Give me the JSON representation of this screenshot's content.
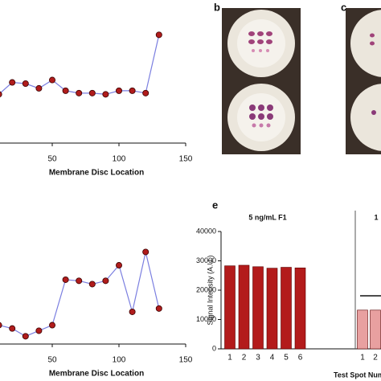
{
  "panels": [
    "b",
    "c"
  ],
  "chart_data": [
    {
      "type": "line",
      "xlabel": "Membrane Disc Location",
      "x": [
        10,
        20,
        30,
        40,
        50,
        60,
        70,
        80,
        90,
        100,
        110,
        120,
        130
      ],
      "values": [
        41,
        51,
        50,
        46,
        53,
        44,
        42,
        42,
        41,
        44,
        44,
        42,
        91
      ],
      "xlim": [
        0,
        150
      ],
      "xticks": [
        50,
        100,
        150
      ],
      "ylim": [
        0,
        100
      ],
      "color": "#7b7fe0",
      "marker_color": "#b01c1c"
    },
    {
      "type": "line",
      "xlabel": "Membrane Disc Location",
      "x": [
        10,
        20,
        30,
        40,
        50,
        60,
        70,
        80,
        90,
        100,
        110,
        120,
        130
      ],
      "values": [
        17,
        14,
        7,
        12,
        17,
        58,
        57,
        54,
        57,
        71,
        29,
        83,
        32
      ],
      "xlim": [
        0,
        150
      ],
      "xticks": [
        50,
        100,
        150
      ],
      "ylim": [
        0,
        100
      ],
      "color": "#7b7fe0",
      "marker_color": "#b01c1c"
    },
    {
      "type": "bar",
      "panel_label": "e",
      "ylabel": "Signal Intensity (A.U.)",
      "xlabel": "Test Spot Num",
      "annotations": [
        "5 ng/mL F1",
        "1"
      ],
      "categories": [
        "1",
        "2",
        "3",
        "4",
        "5",
        "6",
        "1",
        "2"
      ],
      "values": [
        28300,
        28500,
        28000,
        27500,
        27800,
        27600,
        13200,
        13200
      ],
      "colors": [
        "#b31b1b",
        "#b31b1b",
        "#b31b1b",
        "#b31b1b",
        "#b31b1b",
        "#b31b1b",
        "#e8a0a0",
        "#e8a0a0"
      ],
      "ylim": [
        0,
        40000
      ],
      "yticks": [
        0,
        10000,
        20000,
        30000,
        40000
      ]
    }
  ]
}
